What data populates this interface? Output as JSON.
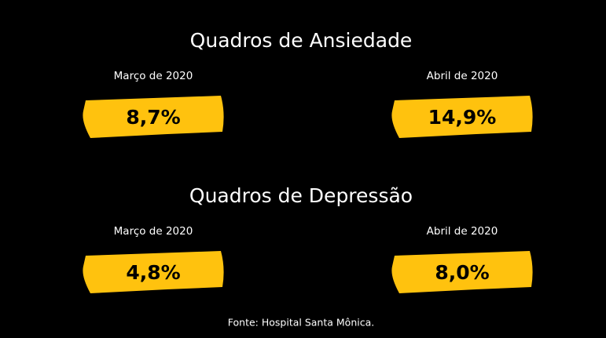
{
  "sections": [
    {
      "title": "Quadros de Ansiedade",
      "items": [
        {
          "label": "Março de 2020",
          "value": "8,7%"
        },
        {
          "label": "Abril de 2020",
          "value": "14,9%"
        }
      ]
    },
    {
      "title": "Quadros de Depressão",
      "items": [
        {
          "label": "Março de 2020",
          "value": "4,8%"
        },
        {
          "label": "Abril de 2020",
          "value": "8,0%"
        }
      ]
    }
  ],
  "footer": "Fonte: Hospital Santa Mônica."
}
